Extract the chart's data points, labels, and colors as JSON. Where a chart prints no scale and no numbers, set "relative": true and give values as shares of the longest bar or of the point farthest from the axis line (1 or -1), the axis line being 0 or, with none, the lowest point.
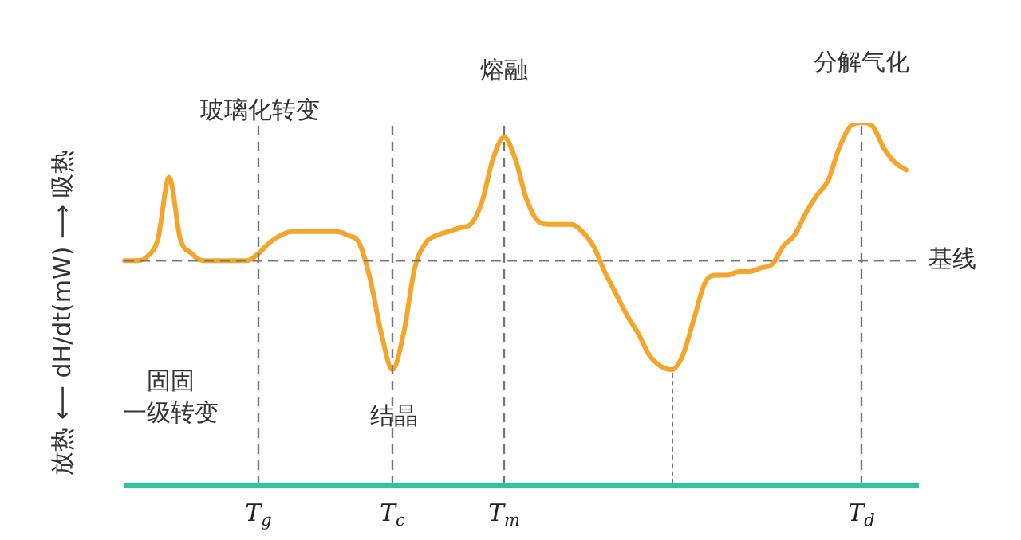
{
  "chart_data": {
    "type": "line",
    "relative": true,
    "ylabel": "放热 ⟵ dH/dt(mW) ⟶ 吸热",
    "categories": [
      null,
      null,
      null,
      null,
      null,
      null,
      null,
      null,
      null,
      null,
      null,
      null,
      "T$_{g}$",
      null,
      null,
      null,
      null,
      null,
      null,
      null,
      null,
      null,
      null,
      null,
      "T$_{c}$",
      null,
      null,
      null,
      null,
      null,
      null,
      null,
      null,
      null,
      "T$_{m}$",
      null,
      null,
      null,
      null,
      null,
      null,
      null,
      null,
      null,
      null,
      null,
      null,
      null,
      null,
      null,
      null,
      null,
      null,
      null,
      null,
      null,
      null,
      null,
      null,
      null,
      null,
      null,
      null,
      null,
      null,
      null,
      "T$_{d}$",
      null,
      null,
      null,
      null
    ],
    "series": [
      {
        "color": "#f5a62a",
        "values": [
          0.62,
          0.62,
          0.63,
          0.68,
          0.85,
          0.68,
          0.64,
          0.62,
          0.62,
          0.62,
          0.62,
          0.62,
          0.64,
          0.67,
          0.69,
          0.7,
          0.7,
          0.7,
          0.7,
          0.7,
          0.69,
          0.67,
          0.57,
          0.42,
          0.32,
          0.42,
          0.6,
          0.67,
          0.69,
          0.7,
          0.71,
          0.72,
          0.78,
          0.9,
          0.96,
          0.9,
          0.79,
          0.73,
          0.72,
          0.72,
          0.72,
          0.7,
          0.66,
          0.59,
          0.53,
          0.47,
          0.42,
          0.36,
          0.33,
          0.32,
          0.36,
          0.46,
          0.56,
          0.58,
          0.58,
          0.59,
          0.59,
          0.6,
          0.61,
          0.66,
          0.69,
          0.75,
          0.8,
          0.84,
          0.93,
          0.99,
          1,
          0.99,
          0.93,
          0.89,
          0.87
        ]
      }
    ],
    "ref_lines": [
      {
        "axis": "y",
        "value": 0.62,
        "label": "基线",
        "color": "#777777",
        "line_style": "dashed"
      }
    ],
    "annotations": [
      "玻璃化转变",
      "熔融",
      "分解气化",
      "结晶",
      "固固一级转变"
    ],
    "grid": "x",
    "legend": false,
    "marker": "none",
    "line_style": "solid"
  }
}
